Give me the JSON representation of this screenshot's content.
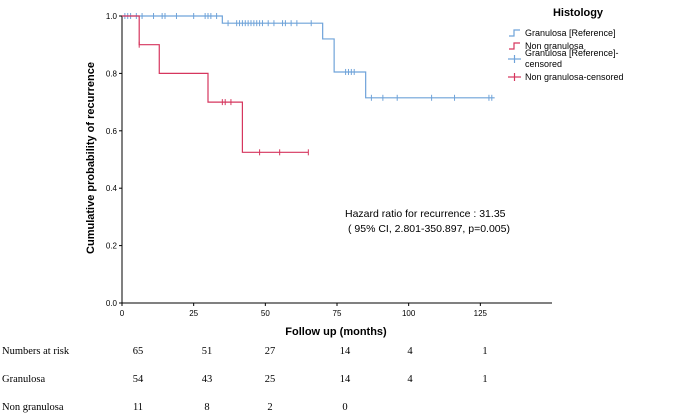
{
  "chart_data": {
    "type": "line",
    "chart_kind": "kaplan-meier step",
    "ylabel": "Cumulative probability of recurrence",
    "xlabel": "Follow up (months)",
    "xlim": [
      0,
      150
    ],
    "ylim": [
      0.0,
      1.0
    ],
    "x_ticks": [
      "0",
      "25",
      "50",
      "75",
      "100",
      "125"
    ],
    "y_ticks": [
      "0.0",
      "0.2",
      "0.4",
      "0.6",
      "0.8",
      "1.0"
    ],
    "grid": false,
    "legend": {
      "title": "Histology",
      "placement": "right",
      "entries": [
        {
          "label": "Granulosa [Reference]",
          "color": "#6fa3d9",
          "kind": "line"
        },
        {
          "label": "Non granulosa",
          "color": "#d6365e",
          "kind": "line"
        },
        {
          "label": "Granulosa [Reference]-censored",
          "color": "#6fa3d9",
          "kind": "censor"
        },
        {
          "label": "Non granulosa-censored",
          "color": "#d6365e",
          "kind": "censor"
        }
      ]
    },
    "annotation": {
      "line1": "Hazard ratio for recurrence : 31.35",
      "line2": "( 95% CI, 2.801-350.897, p=0.005)"
    },
    "series": [
      {
        "name": "Granulosa [Reference]",
        "color": "#6fa3d9",
        "steps": [
          [
            0,
            1.0
          ],
          [
            35,
            0.975
          ],
          [
            70,
            0.92
          ],
          [
            74,
            0.805
          ],
          [
            85,
            0.715
          ],
          [
            130,
            0.715
          ]
        ],
        "censored": [
          1,
          2,
          3,
          5,
          7,
          11,
          14,
          15,
          19,
          25,
          29,
          30,
          31,
          33,
          37,
          40,
          41,
          42,
          43,
          44,
          45,
          46,
          47,
          48,
          49,
          51,
          53,
          56,
          57,
          59,
          61,
          66,
          78,
          79,
          80,
          81,
          87,
          91,
          96,
          108,
          116,
          128,
          129
        ]
      },
      {
        "name": "Non granulosa",
        "color": "#d6365e",
        "steps": [
          [
            0,
            1.0
          ],
          [
            6,
            0.9
          ],
          [
            13,
            0.8
          ],
          [
            30,
            0.7
          ],
          [
            42,
            0.525
          ],
          [
            65,
            0.525
          ]
        ],
        "censored": [
          6,
          35,
          36,
          38,
          48,
          55,
          65
        ]
      }
    ]
  },
  "risk_table": {
    "header": {
      "label": "Numbers at risk",
      "values": [
        "65",
        "51",
        "27",
        "14",
        "4",
        "1"
      ]
    },
    "rows": [
      {
        "label": "Granulosa",
        "values": [
          "54",
          "43",
          "25",
          "14",
          "4",
          "1"
        ]
      },
      {
        "label": "Non granulosa",
        "values": [
          "11",
          "8",
          "2",
          "0"
        ]
      }
    ]
  }
}
